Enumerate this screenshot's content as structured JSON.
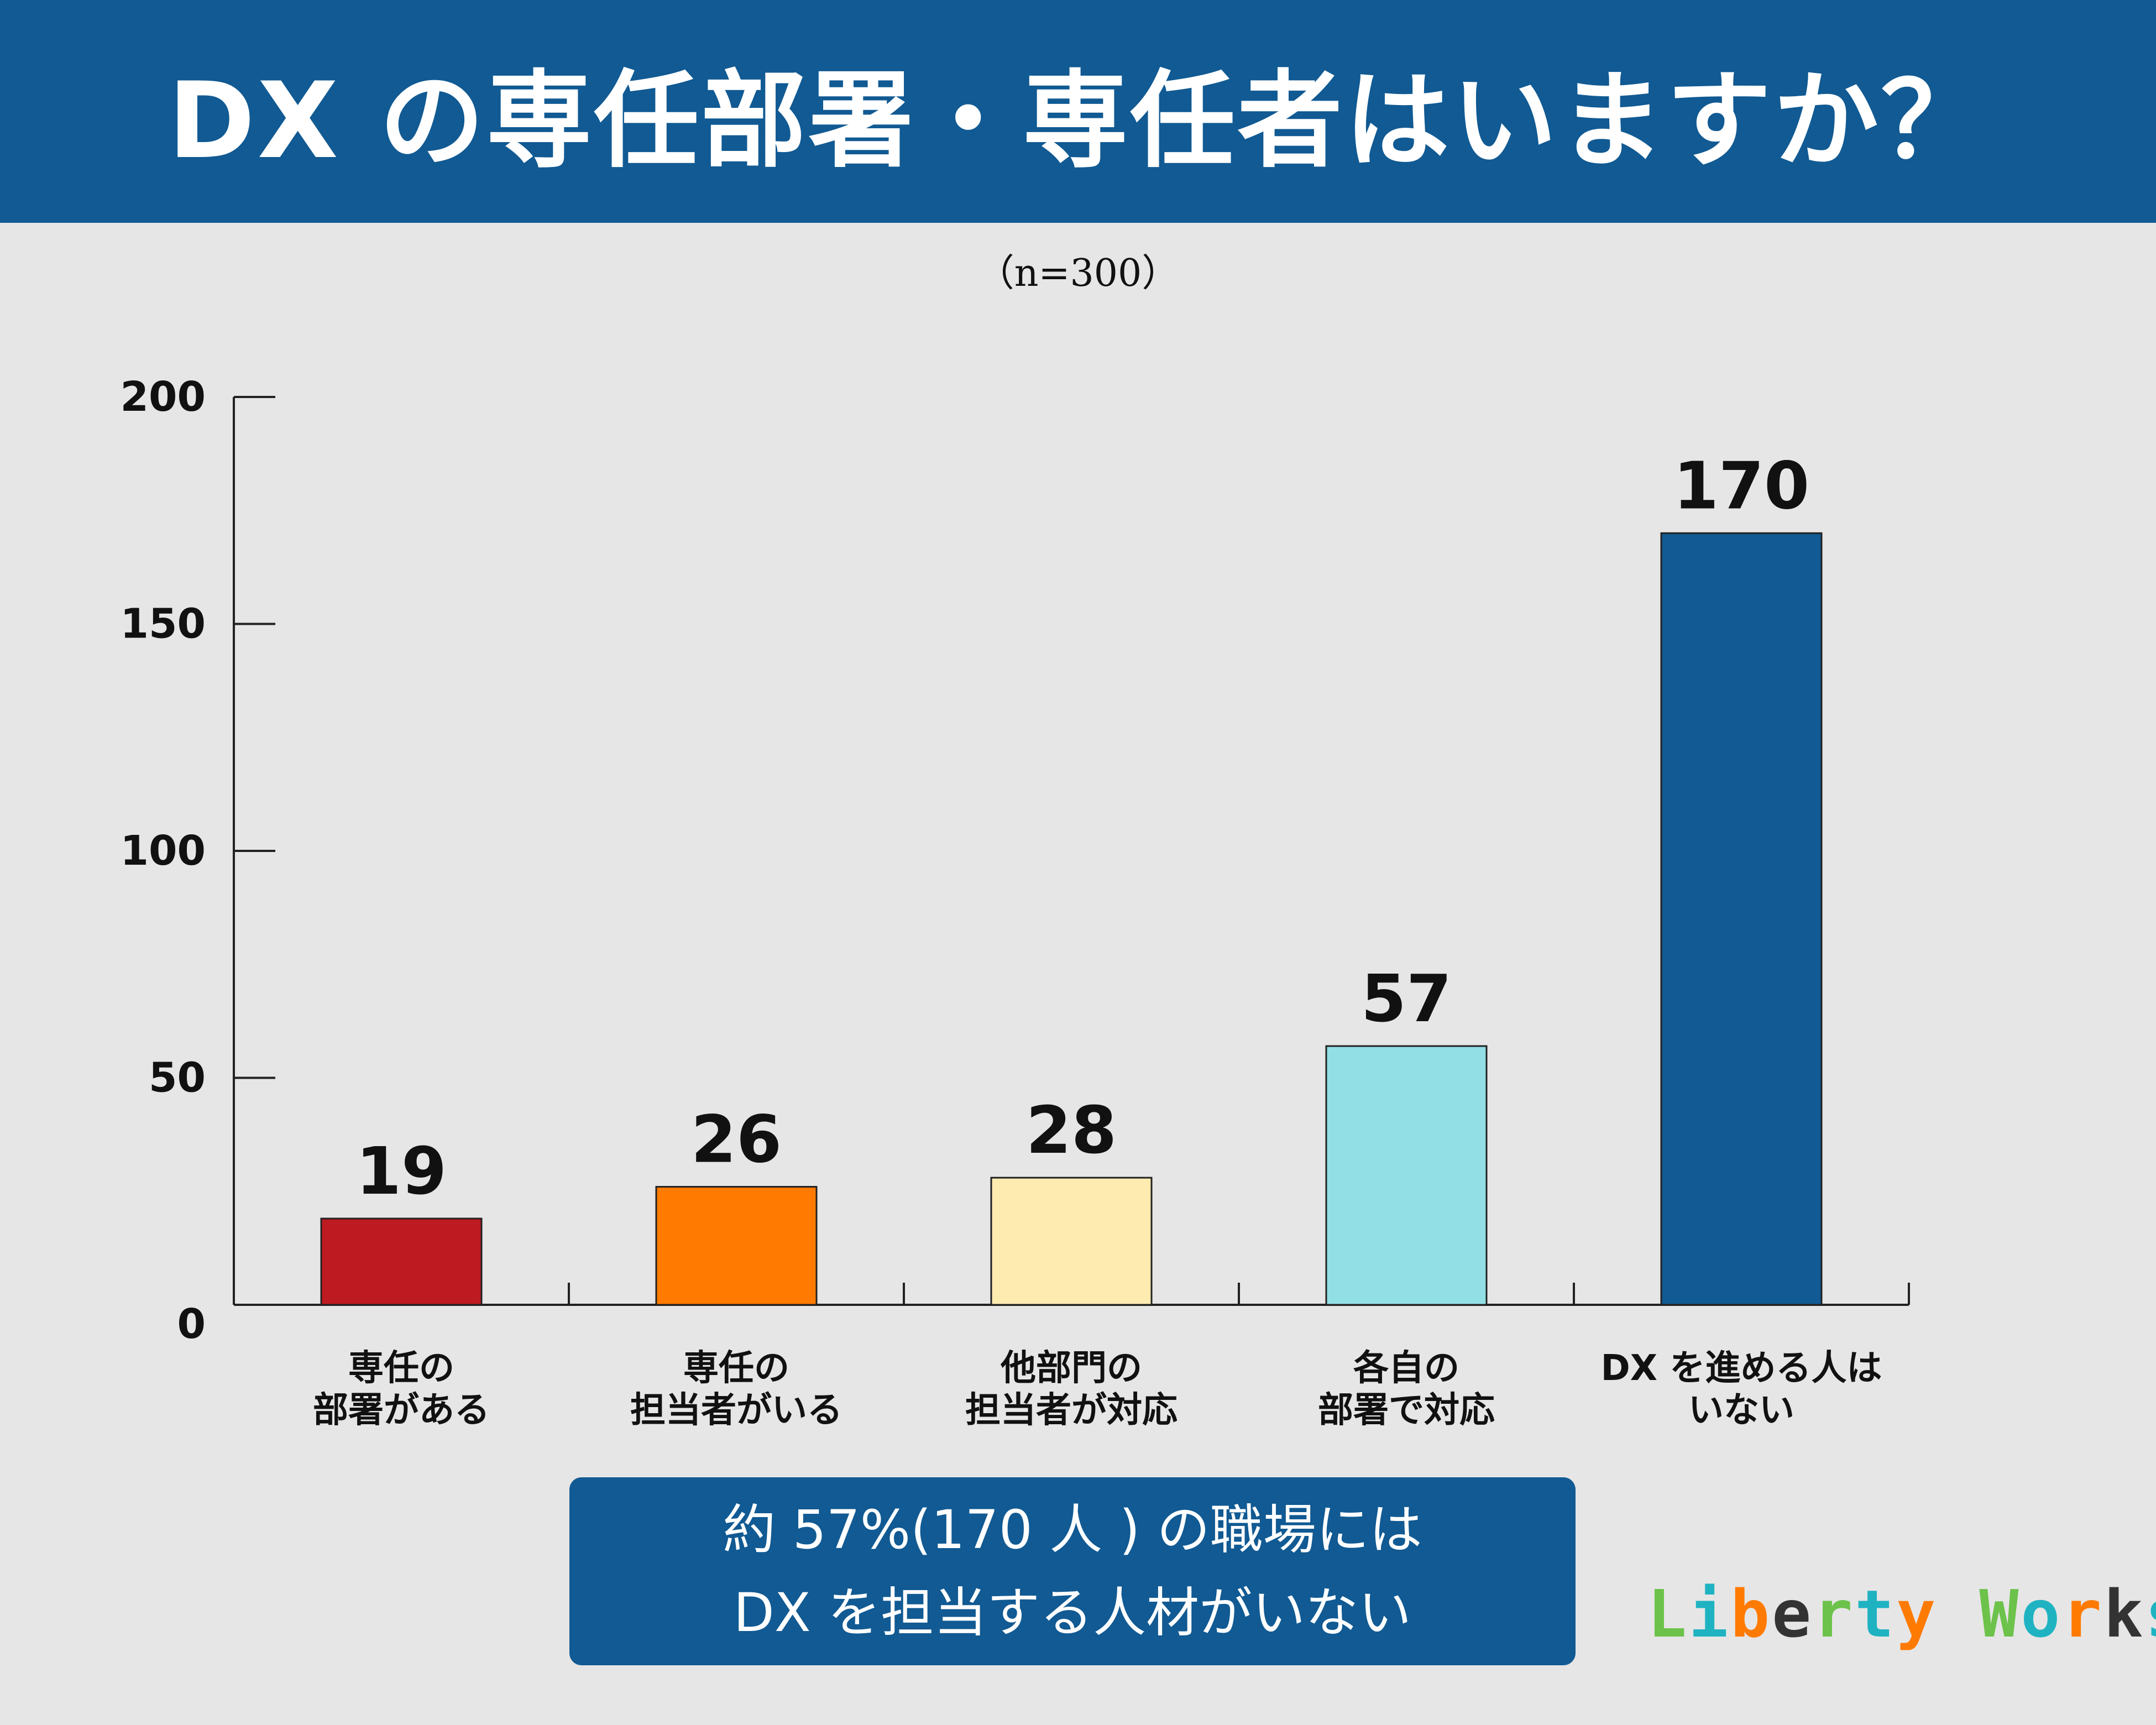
{
  "header": {
    "title": "DX の専任部署・専任者はいますか？",
    "subtitle": "（n=300）",
    "background_color": "#115a93"
  },
  "chart_data": {
    "type": "bar",
    "categories": [
      [
        "専任の",
        "部署がある"
      ],
      [
        "専任の",
        "担当者がいる"
      ],
      [
        "他部門の",
        "担当者が対応"
      ],
      [
        "各自の",
        "部署で対応"
      ],
      [
        "DX を進める人は",
        "いない"
      ]
    ],
    "values": [
      19,
      26,
      28,
      57,
      170
    ],
    "colors": [
      "#be1a22",
      "#ff7a00",
      "#fdebb0",
      "#92dfe6",
      "#115a93"
    ],
    "ylim": [
      0,
      200
    ],
    "yticks": [
      0,
      50,
      100,
      150,
      200
    ],
    "grid": false,
    "legend": "none"
  },
  "callout": {
    "line1": "約 57%(170 人 ) の職場には",
    "line2": "DX を担当する人材がいない"
  },
  "logo": {
    "text": "Liberty Works",
    "colors": [
      "#6cc24a",
      "#1fb3c2",
      "#ff7a00",
      "#333333"
    ]
  }
}
